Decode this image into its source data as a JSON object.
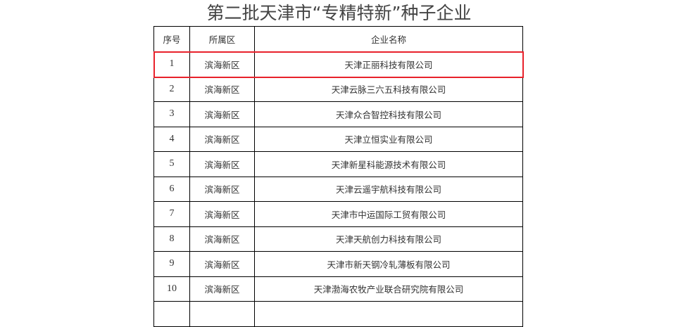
{
  "title": "第二批天津市“专精特新”种子企业",
  "headers": [
    "序号",
    "所属区",
    "企业名称"
  ],
  "highlight_color": "#e8212b",
  "rows": [
    [
      "1",
      "滨海新区",
      "天津正丽科技有限公司"
    ],
    [
      "2",
      "滨海新区",
      "天津云脉三六五科技有限公司"
    ],
    [
      "3",
      "滨海新区",
      "天津众合智控科技有限公司"
    ],
    [
      "4",
      "滨海新区",
      "天津立恒实业有限公司"
    ],
    [
      "5",
      "滨海新区",
      "天津新星科能源技术有限公司"
    ],
    [
      "6",
      "滨海新区",
      "天津云遥宇航科技有限公司"
    ],
    [
      "7",
      "滨海新区",
      "天津市中运国际工贸有限公司"
    ],
    [
      "8",
      "滨海新区",
      "天津天航创力科技有限公司"
    ],
    [
      "9",
      "滨海新区",
      "天津市新天钢冷轧薄板有限公司"
    ],
    [
      "10",
      "滨海新区",
      "天津渤海农牧产业联合研究院有限公司"
    ]
  ]
}
